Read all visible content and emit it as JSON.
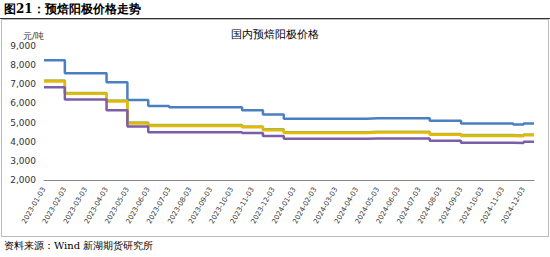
{
  "header": "图21：预焙阳极价格走势",
  "source": "资料来源：Wind   新湖期货研究所",
  "chart_data": {
    "type": "line",
    "title": "国内预焙阳极价格",
    "y_label": "元/吨",
    "categories": [
      "2023-01-03",
      null,
      "2023-02-03",
      null,
      "2023-03-03",
      null,
      "2023-04-03",
      null,
      "2023-05-03",
      null,
      "2023-06-03",
      null,
      "2023-07-03",
      null,
      "2023-08-03",
      null,
      "2023-09-03",
      null,
      "2023-10-03",
      null,
      "2023-11-03",
      null,
      "2023-12-03",
      null,
      "2024-01-03",
      null,
      "2024-02-03",
      null,
      "2024-03-03",
      null,
      "2024-04-03",
      null,
      "2024-05-03",
      null,
      "2024-06-03",
      null,
      "2024-07-03",
      null,
      "2024-08-03",
      null,
      "2024-09-03",
      null,
      "2024-10-03",
      null,
      "2024-11-03",
      null,
      "2024-12-03",
      null
    ],
    "series": [
      {
        "color": "#4a7fc1",
        "values": [
          8250,
          8250,
          7580,
          7580,
          7580,
          7580,
          7100,
          7100,
          6180,
          6180,
          5870,
          5870,
          5800,
          5800,
          5800,
          5800,
          5800,
          5800,
          5800,
          5650,
          5650,
          5420,
          5420,
          5200,
          5200,
          5200,
          5200,
          5200,
          5200,
          5200,
          5200,
          5220,
          5220,
          5220,
          5220,
          5220,
          5220,
          5100,
          5100,
          5100,
          4950,
          4950,
          4950,
          4950,
          4950,
          4900,
          4950,
          4950
        ]
      },
      {
        "color": "#9bbb59",
        "values": [
          7200,
          7200,
          6550,
          6550,
          6550,
          6550,
          6150,
          6150,
          5000,
          5000,
          4870,
          4870,
          4870,
          4870,
          4870,
          4870,
          4870,
          4870,
          4870,
          4800,
          4800,
          4650,
          4650,
          4500,
          4500,
          4500,
          4500,
          4500,
          4500,
          4500,
          4500,
          4520,
          4520,
          4520,
          4520,
          4520,
          4520,
          4400,
          4400,
          4400,
          4350,
          4350,
          4350,
          4350,
          4350,
          4320,
          4380,
          4380
        ]
      },
      {
        "color": "#e6b800",
        "values": [
          7150,
          7150,
          6500,
          6500,
          6500,
          6500,
          6100,
          6100,
          4950,
          4950,
          4820,
          4820,
          4820,
          4820,
          4820,
          4820,
          4820,
          4820,
          4820,
          4760,
          4760,
          4600,
          4600,
          4460,
          4460,
          4460,
          4460,
          4460,
          4460,
          4460,
          4460,
          4480,
          4480,
          4480,
          4480,
          4480,
          4480,
          4360,
          4360,
          4360,
          4300,
          4300,
          4300,
          4300,
          4300,
          4280,
          4340,
          4340
        ]
      },
      {
        "color": "#7b5ea7",
        "values": [
          6850,
          6850,
          6200,
          6200,
          6200,
          6200,
          5650,
          5650,
          4800,
          4800,
          4500,
          4500,
          4500,
          4500,
          4500,
          4500,
          4500,
          4500,
          4500,
          4450,
          4450,
          4300,
          4300,
          4150,
          4150,
          4150,
          4150,
          4150,
          4150,
          4150,
          4150,
          4170,
          4170,
          4170,
          4170,
          4170,
          4170,
          4050,
          4050,
          4050,
          3950,
          3950,
          3950,
          3950,
          3950,
          3930,
          4000,
          4000
        ]
      }
    ],
    "ylim": [
      2000,
      9000
    ],
    "yticks": [
      {
        "value": 2000,
        "label": "2,000"
      },
      {
        "value": 3000,
        "label": "3,000"
      },
      {
        "value": 4000,
        "label": "4,000"
      },
      {
        "value": 5000,
        "label": "5,000"
      },
      {
        "value": 6000,
        "label": "6,000"
      },
      {
        "value": 7000,
        "label": "7,000"
      },
      {
        "value": 8000,
        "label": "8,000"
      },
      {
        "value": 9000,
        "label": "9,000"
      }
    ],
    "grid": false
  }
}
